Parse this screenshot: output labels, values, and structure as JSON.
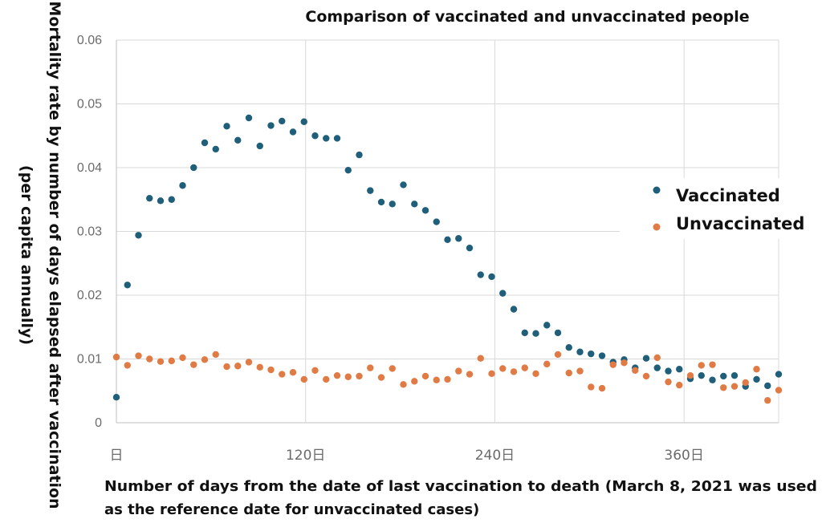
{
  "chart_data": {
    "type": "scatter",
    "title": "Comparison of vaccinated and unvaccinated people",
    "ylabel_line1": "Mortality rate by number of days elapsed after vaccination",
    "ylabel_line2": "(per capita annually)",
    "xlabel_line1": "Number of days from the date of last vaccination to death (March 8, 2021 was used",
    "xlabel_line2": "as the reference date for unvaccinated cases)",
    "xlim": [
      0,
      420
    ],
    "ylim": [
      0,
      0.06
    ],
    "y_ticks": [
      0,
      0.01,
      0.02,
      0.03,
      0.04,
      0.05,
      0.06
    ],
    "y_tick_labels": [
      "0",
      "0.01",
      "0.02",
      "0.03",
      "0.04",
      "0.05",
      "0.06"
    ],
    "x_ticks": [
      0,
      120,
      240,
      360
    ],
    "x_tick_labels": [
      "日",
      "120日",
      "240日",
      "360日"
    ],
    "grid": true,
    "legend_position": "right",
    "series": [
      {
        "name": "Vaccinated",
        "color": "#1f5f7a",
        "x": [
          0,
          7,
          14,
          21,
          28,
          35,
          42,
          49,
          56,
          63,
          70,
          77,
          84,
          91,
          98,
          105,
          112,
          119,
          126,
          133,
          140,
          147,
          154,
          161,
          168,
          175,
          182,
          189,
          196,
          203,
          210,
          217,
          224,
          231,
          238,
          245,
          252,
          259,
          266,
          273,
          280,
          287,
          294,
          301,
          308,
          315,
          322,
          329,
          336,
          343,
          350,
          357,
          364,
          371,
          378,
          385,
          392,
          399,
          406,
          413,
          420
        ],
        "y": [
          0.004,
          0.0216,
          0.0294,
          0.0352,
          0.0348,
          0.035,
          0.0372,
          0.04,
          0.0439,
          0.0429,
          0.0465,
          0.0443,
          0.0478,
          0.0434,
          0.0466,
          0.0473,
          0.0456,
          0.0472,
          0.045,
          0.0446,
          0.0446,
          0.0396,
          0.042,
          0.0364,
          0.0346,
          0.0343,
          0.0373,
          0.0343,
          0.0333,
          0.0315,
          0.0287,
          0.0289,
          0.0274,
          0.0232,
          0.0229,
          0.0203,
          0.0178,
          0.0141,
          0.014,
          0.0153,
          0.0141,
          0.0118,
          0.0111,
          0.0108,
          0.0105,
          0.0095,
          0.0099,
          0.0086,
          0.0101,
          0.0086,
          0.0081,
          0.0084,
          0.0069,
          0.0074,
          0.0067,
          0.0073,
          0.0074,
          0.0057,
          0.0068,
          0.0058,
          0.0076
        ]
      },
      {
        "name": "Unvaccinated",
        "color": "#e07b45",
        "x": [
          0,
          7,
          14,
          21,
          28,
          35,
          42,
          49,
          56,
          63,
          70,
          77,
          84,
          91,
          98,
          105,
          112,
          119,
          126,
          133,
          140,
          147,
          154,
          161,
          168,
          175,
          182,
          189,
          196,
          203,
          210,
          217,
          224,
          231,
          238,
          245,
          252,
          259,
          266,
          273,
          280,
          287,
          294,
          301,
          308,
          315,
          322,
          329,
          336,
          343,
          350,
          357,
          364,
          371,
          378,
          385,
          392,
          399,
          406,
          413,
          420
        ],
        "y": [
          0.0103,
          0.009,
          0.0105,
          0.01,
          0.0096,
          0.0097,
          0.0102,
          0.0091,
          0.0099,
          0.0107,
          0.0088,
          0.0089,
          0.0095,
          0.0087,
          0.0083,
          0.0076,
          0.0079,
          0.0068,
          0.0082,
          0.0068,
          0.0074,
          0.0072,
          0.0073,
          0.0086,
          0.0071,
          0.0085,
          0.006,
          0.0065,
          0.0073,
          0.0067,
          0.0068,
          0.0081,
          0.0076,
          0.0101,
          0.0077,
          0.0085,
          0.008,
          0.0086,
          0.0077,
          0.0092,
          0.0107,
          0.0078,
          0.0081,
          0.0056,
          0.0054,
          0.0091,
          0.0094,
          0.0082,
          0.0073,
          0.0102,
          0.0064,
          0.0059,
          0.0074,
          0.009,
          0.0091,
          0.0055,
          0.0057,
          0.0063,
          0.0084,
          0.0035,
          0.0051
        ]
      }
    ]
  }
}
